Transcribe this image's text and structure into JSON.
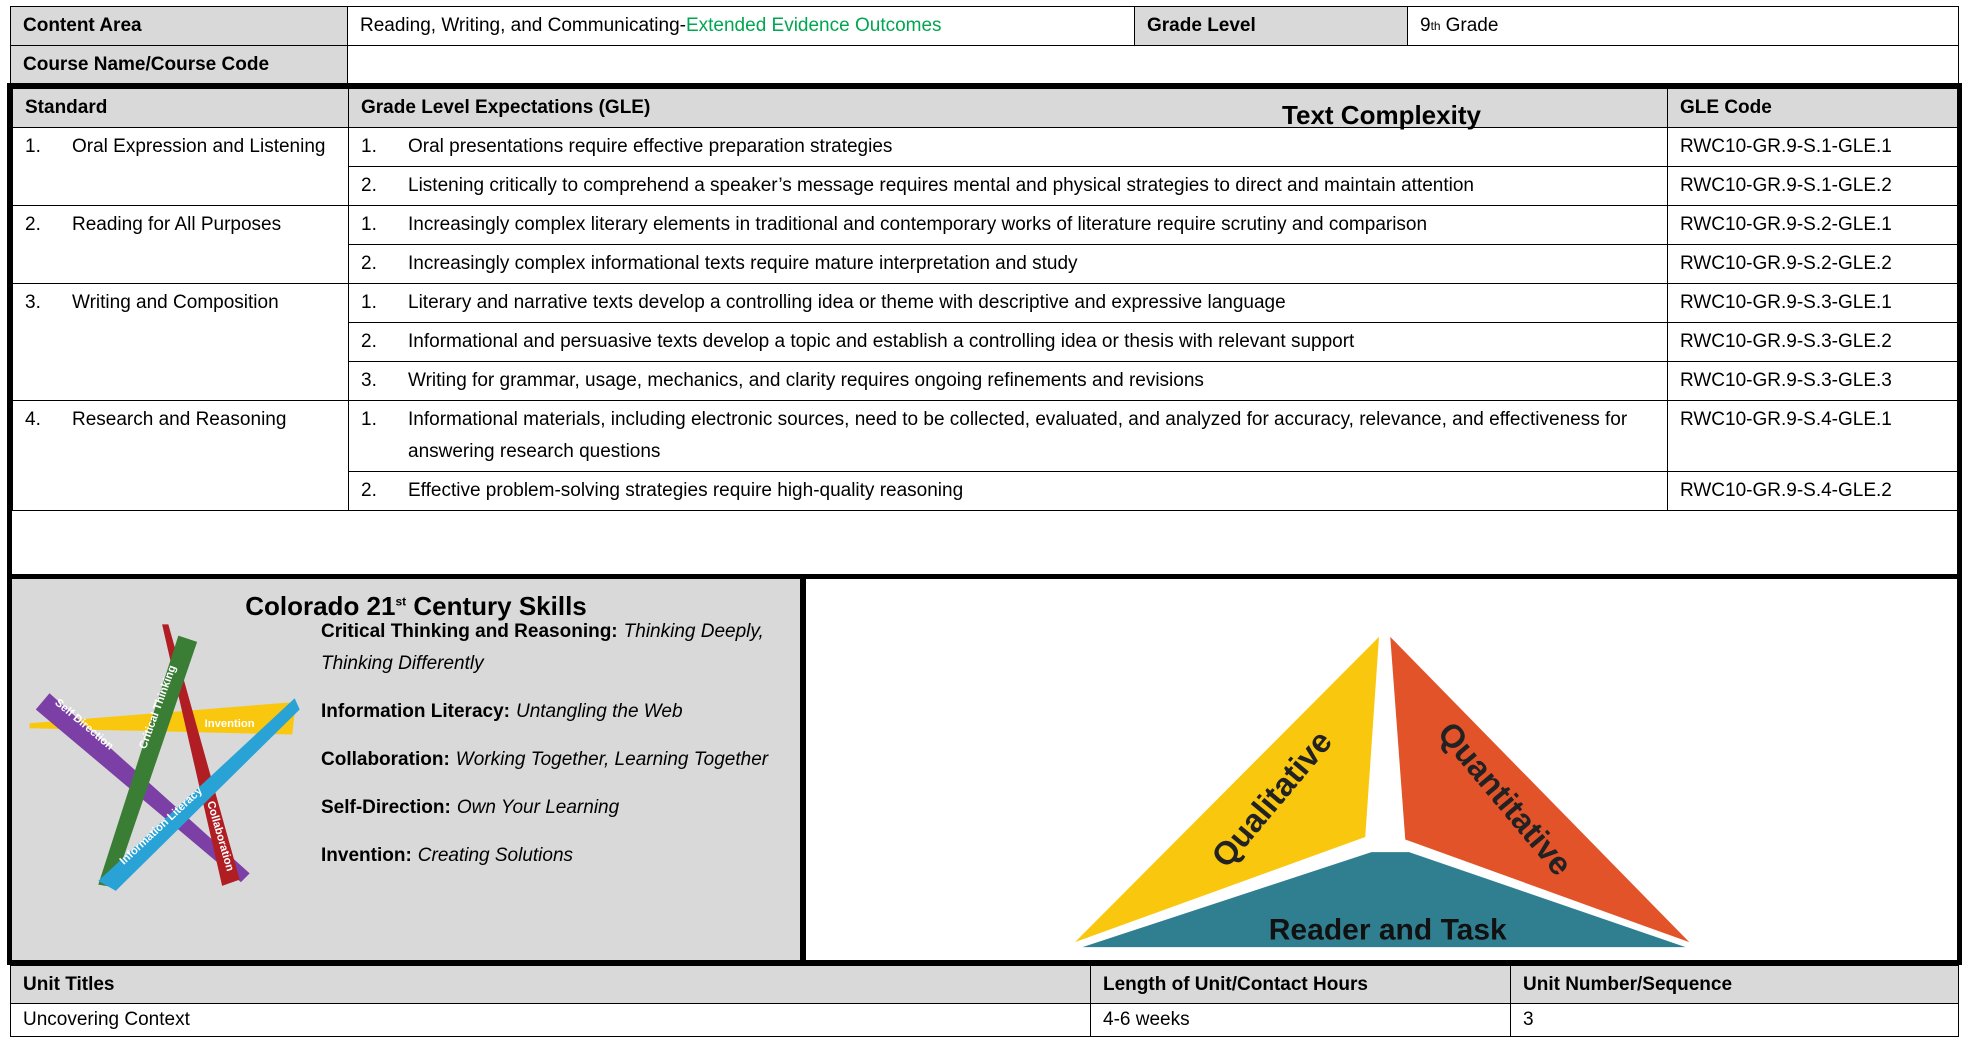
{
  "header": {
    "content_area_label": "Content Area",
    "content_area": "Reading, Writing, and Communicating-",
    "content_area_highlight": "Extended Evidence Outcomes",
    "grade_level_label": "Grade Level",
    "grade_level_number": "9",
    "grade_level_sup": "th",
    "grade_level_suffix": "Grade",
    "course_label": "Course Name/Course Code"
  },
  "standards_table": {
    "headers": [
      "Standard",
      "Grade Level Expectations (GLE)",
      "GLE Code"
    ],
    "rows": [
      {
        "number": "1.",
        "name": "Oral Expression and Listening",
        "gles": [
          {
            "number": "1.",
            "text": "Oral presentations require effective preparation strategies",
            "code": "RWC10-GR.9-S.1-GLE.1"
          },
          {
            "number": "2.",
            "text": "Listening critically to comprehend a speaker’s message requires mental and physical strategies to direct and maintain attention",
            "code": "RWC10-GR.9-S.1-GLE.2"
          }
        ]
      },
      {
        "number": "2.",
        "name": "Reading for All Purposes",
        "gles": [
          {
            "number": "1.",
            "text": "Increasingly complex literary elements in traditional and contemporary works of literature require scrutiny and comparison",
            "code": "RWC10-GR.9-S.2-GLE.1"
          },
          {
            "number": "2.",
            "text": "Increasingly complex informational texts require mature interpretation and study",
            "code": "RWC10-GR.9-S.2-GLE.2"
          }
        ]
      },
      {
        "number": "3.",
        "name": "Writing and Composition",
        "gles": [
          {
            "number": "1.",
            "text": "Literary and narrative texts develop a controlling idea or theme with descriptive and expressive language",
            "code": "RWC10-GR.9-S.3-GLE.1"
          },
          {
            "number": "2.",
            "text": "Informational and persuasive texts develop a topic and establish a controlling idea or thesis with relevant support",
            "code": "RWC10-GR.9-S.3-GLE.2"
          },
          {
            "number": "3.",
            "text": "Writing for grammar, usage, mechanics, and clarity requires ongoing refinements and revisions",
            "code": "RWC10-GR.9-S.3-GLE.3"
          }
        ]
      },
      {
        "number": "4.",
        "name": "Research and Reasoning",
        "gles": [
          {
            "number": "1.",
            "text": "Informational materials, including electronic sources, need to be collected, evaluated, and analyzed for accuracy, relevance, and effectiveness for answering research questions",
            "code": "RWC10-GR.9-S.4-GLE.1"
          },
          {
            "number": "2.",
            "text": "Effective problem-solving strategies require high-quality reasoning",
            "code": "RWC10-GR.9-S.4-GLE.2"
          }
        ]
      }
    ]
  },
  "skills": {
    "title": "Colorado 21",
    "title_sup": "st",
    "title_suffix": "Century Skills",
    "items": [
      {
        "label": "Critical Thinking and Reasoning:",
        "text": "Thinking Deeply, Thinking Differently"
      },
      {
        "label": "Information Literacy:",
        "text": "Untangling the Web"
      },
      {
        "label": "Collaboration:",
        "text": "Working Together, Learning Together"
      },
      {
        "label": "Self-Direction:",
        "text": "Own Your Learning"
      },
      {
        "label": "Invention:",
        "text": "Creating Solutions"
      }
    ],
    "graphic_labels": [
      "Self Direction",
      "Critical Thinking",
      "Invention",
      "Information Literacy",
      "Collaboration"
    ]
  },
  "text_complexity": {
    "title": "Text Complexity",
    "labels": [
      "Qualitative",
      "Quantitative",
      "Reader and Task"
    ]
  },
  "unit": {
    "headers": [
      "Unit Titles",
      "Length of Unit/Contact Hours",
      "Unit Number/Sequence"
    ],
    "values": [
      "Uncovering Context",
      "4-6 weeks",
      "3"
    ]
  }
}
